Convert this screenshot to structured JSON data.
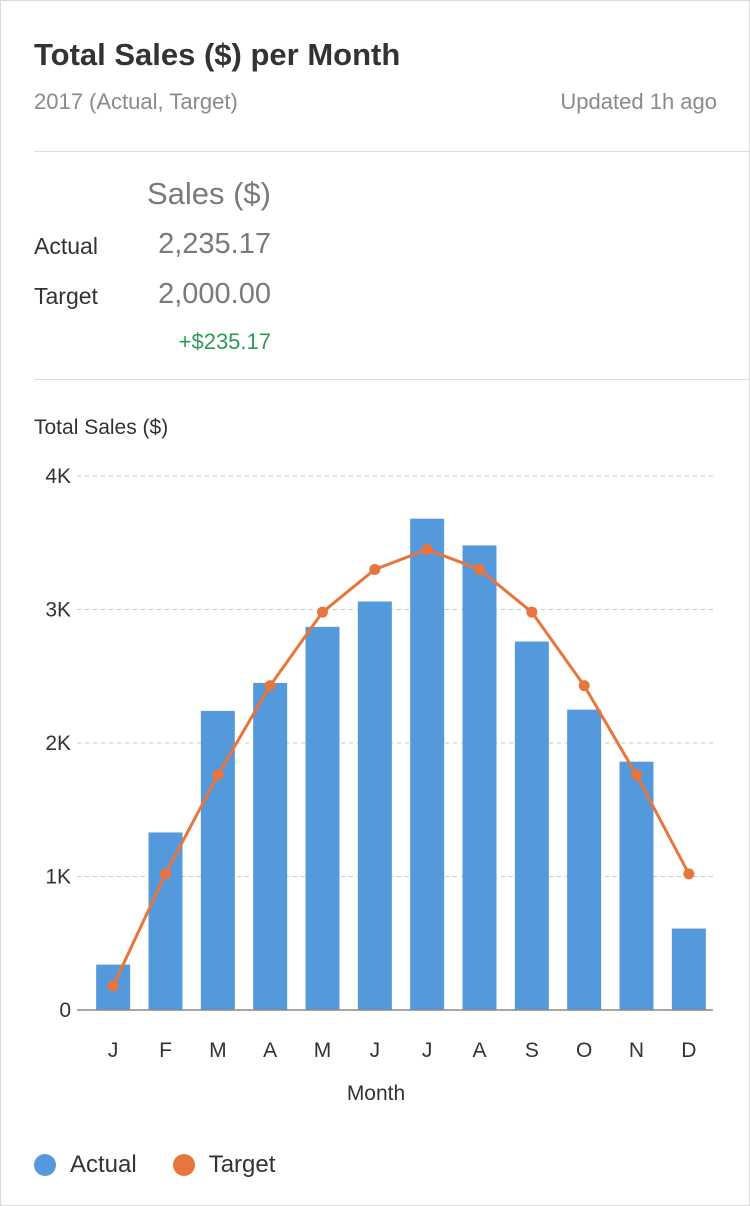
{
  "header": {
    "title": "Total Sales ($) per Month",
    "subtitle": "2017 (Actual, Target)",
    "updated": "Updated 1h ago"
  },
  "summary": {
    "column_header": "Sales ($)",
    "rows": [
      {
        "label": "Actual",
        "value": "2,235.17"
      },
      {
        "label": "Target",
        "value": "2,000.00"
      }
    ],
    "delta": "+$235.17",
    "delta_color": "#2e9a55"
  },
  "colors": {
    "actual": "#5499db",
    "target": "#e8753d"
  },
  "chart_data": {
    "type": "bar",
    "title": "",
    "ylabel": "Total Sales ($)",
    "xlabel": "Month",
    "categories": [
      "J",
      "F",
      "M",
      "A",
      "M",
      "J",
      "J",
      "A",
      "S",
      "O",
      "N",
      "D"
    ],
    "ylim": [
      0,
      4000
    ],
    "yticks": [
      0,
      1000,
      2000,
      3000,
      4000
    ],
    "ytick_labels": [
      "0",
      "1K",
      "2K",
      "3K",
      "4K"
    ],
    "grid": true,
    "legend_position": "bottom-left",
    "series": [
      {
        "name": "Actual",
        "type": "bar",
        "values": [
          340,
          1330,
          2240,
          2450,
          2870,
          3060,
          3680,
          3480,
          2760,
          2250,
          1860,
          610
        ]
      },
      {
        "name": "Target",
        "type": "line",
        "values": [
          180,
          1020,
          1760,
          2430,
          2980,
          3300,
          3450,
          3300,
          2980,
          2430,
          1760,
          1020
        ]
      }
    ]
  }
}
